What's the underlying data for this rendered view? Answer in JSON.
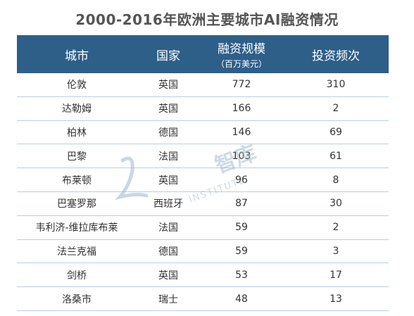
{
  "title": "2000-2016年欧洲主要城市AI融资情况",
  "headers": {
    "city": "城市",
    "country": "国家",
    "funding": "融资规模",
    "funding_unit": "（百万美元）",
    "count": "投资频次"
  },
  "watermark": {
    "cn": "智库",
    "en": "INSTITUTE"
  },
  "colors": {
    "header_bg": "#2e5f89",
    "row_line": "#b9cfe3"
  },
  "chart_data": {
    "type": "table",
    "title": "2000-2016年欧洲主要城市AI融资情况",
    "columns": [
      "城市",
      "国家",
      "融资规模（百万美元）",
      "投资频次"
    ],
    "rows": [
      {
        "city": "伦敦",
        "country": "英国",
        "funding": "772",
        "count": "310"
      },
      {
        "city": "达勒姆",
        "country": "英国",
        "funding": "166",
        "count": "2"
      },
      {
        "city": "柏林",
        "country": "德国",
        "funding": "146",
        "count": "69"
      },
      {
        "city": "巴黎",
        "country": "法国",
        "funding": "103",
        "count": "61"
      },
      {
        "city": "布莱顿",
        "country": "英国",
        "funding": "96",
        "count": "8"
      },
      {
        "city": "巴塞罗那",
        "country": "西班牙",
        "funding": "87",
        "count": "30"
      },
      {
        "city": "韦利济-维拉库布莱",
        "country": "法国",
        "funding": "59",
        "count": "2"
      },
      {
        "city": "法兰克福",
        "country": "德国",
        "funding": "59",
        "count": "3"
      },
      {
        "city": "剑桥",
        "country": "英国",
        "funding": "53",
        "count": "17"
      },
      {
        "city": "洛桑市",
        "country": "瑞士",
        "funding": "48",
        "count": "13"
      }
    ]
  }
}
